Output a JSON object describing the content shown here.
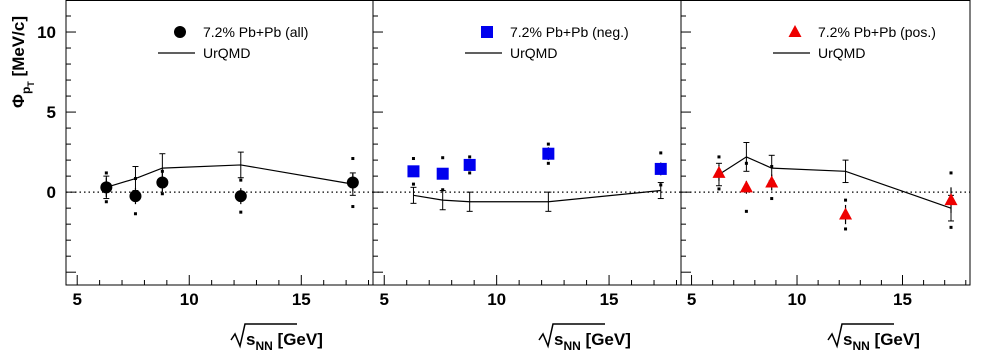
{
  "chart_data": [
    {
      "type": "scatter",
      "panel": "all",
      "xlabel": "√s_NN [GeV]",
      "ylabel": "Φ_pT [MeV/c]",
      "xlim": [
        4.5,
        18.2
      ],
      "ylim": [
        -5.8,
        12
      ],
      "xticks": [
        5,
        10,
        15
      ],
      "yticks": [
        0,
        5,
        10
      ],
      "grid": false,
      "legend_position": "top-center",
      "color": "#000000",
      "marker": "circle",
      "series": [
        {
          "name": "7.2% Pb+Pb (all)",
          "x": [
            6.3,
            7.6,
            8.8,
            12.3,
            17.3
          ],
          "y": [
            0.3,
            -0.25,
            0.6,
            -0.25,
            0.6
          ],
          "stat_err": [
            0.6,
            0.5,
            0.6,
            0.5,
            0.55
          ],
          "sys_err": [
            0.9,
            1.1,
            0.7,
            1.0,
            1.5
          ]
        },
        {
          "name": "UrQMD",
          "x": [
            6.3,
            7.6,
            8.8,
            12.3,
            17.3
          ],
          "y": [
            0.3,
            0.85,
            1.5,
            1.7,
            0.5
          ],
          "err": [
            0.7,
            0.75,
            0.9,
            0.8,
            0.7
          ]
        }
      ]
    },
    {
      "type": "scatter",
      "panel": "neg",
      "xlabel": "√s_NN [GeV]",
      "ylabel": "",
      "xlim": [
        4.5,
        18.2
      ],
      "ylim": [
        -5.8,
        12
      ],
      "xticks": [
        5,
        10,
        15
      ],
      "yticks": [
        0,
        5,
        10
      ],
      "grid": false,
      "legend_position": "top-center",
      "color": "#0000ee",
      "marker": "square",
      "series": [
        {
          "name": "7.2% Pb+Pb (neg.)",
          "x": [
            6.3,
            7.6,
            8.8,
            12.3,
            17.3
          ],
          "y": [
            1.3,
            1.15,
            1.7,
            2.4,
            1.45
          ],
          "stat_err": [
            0.3,
            0.3,
            0.3,
            0.4,
            0.4
          ],
          "sys_err": [
            0.8,
            1.0,
            0.5,
            0.6,
            1.0
          ]
        },
        {
          "name": "UrQMD",
          "x": [
            6.3,
            7.6,
            8.8,
            12.3,
            17.3
          ],
          "y": [
            -0.2,
            -0.5,
            -0.6,
            -0.6,
            0.1
          ],
          "err": [
            0.5,
            0.6,
            0.6,
            0.6,
            0.5
          ]
        }
      ]
    },
    {
      "type": "scatter",
      "panel": "pos",
      "xlabel": "√s_NN [GeV]",
      "ylabel": "",
      "xlim": [
        4.5,
        18.2
      ],
      "ylim": [
        -5.8,
        12
      ],
      "xticks": [
        5,
        10,
        15
      ],
      "yticks": [
        0,
        5,
        10
      ],
      "grid": false,
      "legend_position": "top-center",
      "color": "#ee0000",
      "marker": "triangle",
      "series": [
        {
          "name": "7.2% Pb+Pb (pos.)",
          "x": [
            6.3,
            7.6,
            8.8,
            12.3,
            17.3
          ],
          "y": [
            1.2,
            0.3,
            0.6,
            -1.4,
            -0.5
          ],
          "stat_err": [
            0.5,
            0.4,
            0.5,
            0.6,
            0.8
          ],
          "sys_err": [
            1.0,
            1.5,
            1.0,
            0.9,
            1.7
          ]
        },
        {
          "name": "UrQMD",
          "x": [
            6.3,
            7.6,
            8.8,
            12.3,
            17.3
          ],
          "y": [
            1.1,
            2.2,
            1.5,
            1.3,
            -1.0
          ],
          "err": [
            0.7,
            0.9,
            0.8,
            0.7,
            0.8
          ]
        }
      ]
    }
  ]
}
